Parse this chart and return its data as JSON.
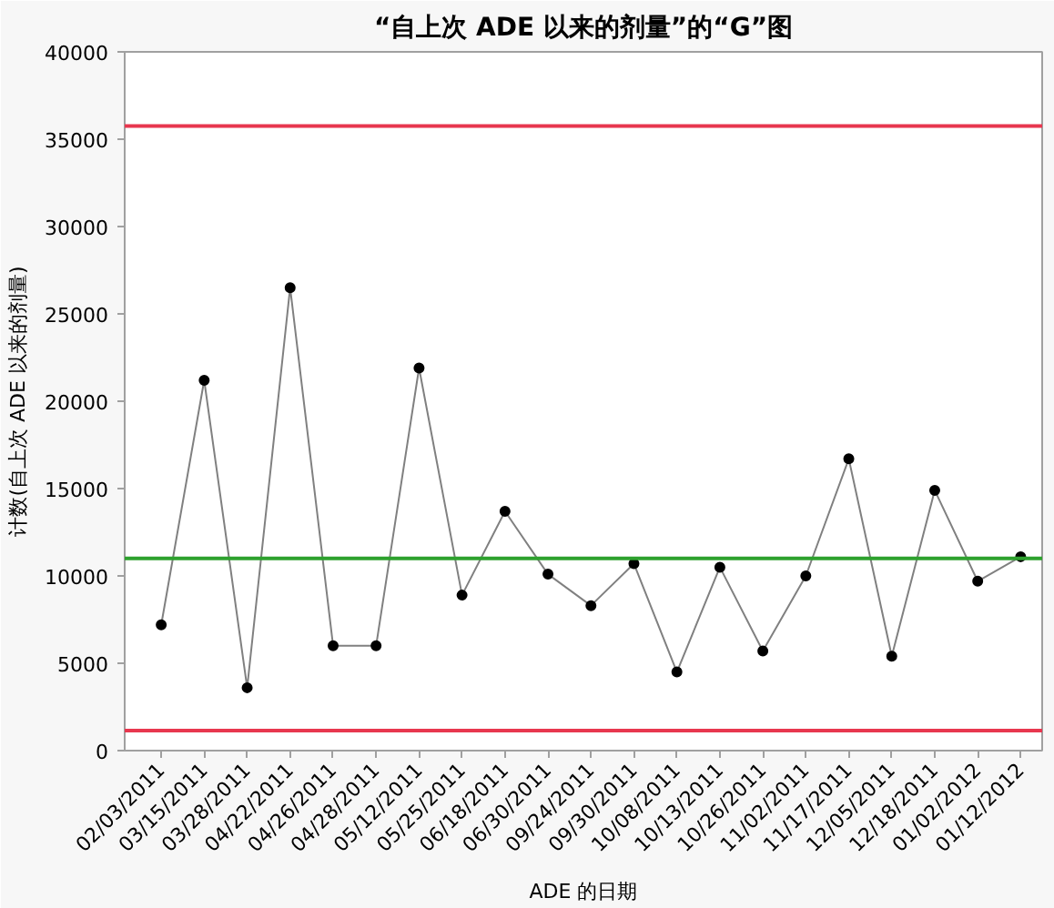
{
  "chart_data": {
    "type": "line",
    "title": "“自上次 ADE 以来的剂量”的“G”图",
    "xlabel": "ADE 的日期",
    "ylabel": "计数(自上次 ADE 以来的剂量)",
    "categories": [
      "02/03/2011",
      "03/15/2011",
      "03/28/2011",
      "04/22/2011",
      "04/26/2011",
      "04/28/2011",
      "05/12/2011",
      "05/25/2011",
      "06/18/2011",
      "06/30/2011",
      "09/24/2011",
      "09/30/2011",
      "10/08/2011",
      "10/13/2011",
      "10/26/2011",
      "11/02/2011",
      "11/17/2011",
      "12/05/2011",
      "12/18/2011",
      "01/02/2012",
      "01/12/2012"
    ],
    "series": [
      {
        "color": "#808080",
        "values": [
          7200,
          21200,
          3600,
          26500,
          6000,
          6000,
          21900,
          8900,
          13700,
          10100,
          8300,
          10700,
          4500,
          10500,
          5700,
          10000,
          16700,
          5400,
          14900,
          9700,
          11100
        ]
      }
    ],
    "ylim": [
      0,
      40000
    ],
    "yticks": [
      0,
      5000,
      10000,
      15000,
      20000,
      25000,
      30000,
      35000,
      40000
    ],
    "ref_lines": [
      {
        "axis": "y",
        "value": 35750,
        "color": "#e8374f"
      },
      {
        "axis": "y",
        "value": 11000,
        "color": "#2ea12e"
      },
      {
        "axis": "y",
        "value": 1150,
        "color": "#e8374f"
      }
    ],
    "marker": "circle",
    "line_style": "solid",
    "grid": false
  }
}
